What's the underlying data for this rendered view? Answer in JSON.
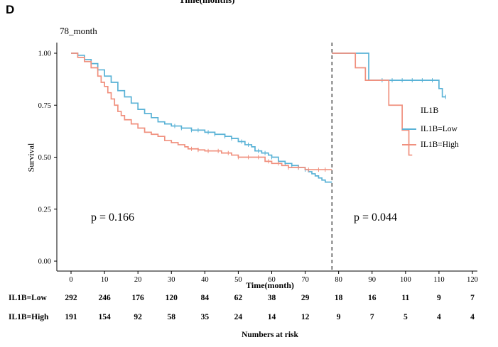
{
  "panel_label": "D",
  "top_cropped_text": "Time(months)",
  "title": "78_month",
  "p_values": {
    "left": "p = 0.166",
    "right": "p = 0.044"
  },
  "legend": {
    "title": "IL1B",
    "entries": [
      {
        "label": "IL1B=Low",
        "color": "#59b2d6"
      },
      {
        "label": "IL1B=High",
        "color": "#f0907e"
      }
    ]
  },
  "axes": {
    "x_label": "Time(month)",
    "y_label": "Survival"
  },
  "risk_table": {
    "caption": "Numbers at risk",
    "rows": [
      {
        "label": "IL1B=Low",
        "values": [
          292,
          246,
          176,
          120,
          84,
          62,
          38,
          29,
          18,
          16,
          11,
          9,
          7
        ]
      },
      {
        "label": "IL1B=High",
        "values": [
          191,
          154,
          92,
          58,
          35,
          24,
          14,
          12,
          9,
          7,
          5,
          4,
          4
        ]
      }
    ]
  },
  "chart_data": {
    "type": "line",
    "subtype": "kaplan-meier",
    "title": "78_month",
    "xlabel": "Time(month)",
    "ylabel": "Survival",
    "xlim": [
      0,
      120
    ],
    "ylim": [
      0,
      1
    ],
    "x_ticks": [
      0,
      10,
      20,
      30,
      40,
      50,
      60,
      70,
      80,
      90,
      100,
      110,
      120
    ],
    "y_ticks": [
      0,
      0.25,
      0.5,
      0.75,
      1
    ],
    "landmark_time": 78,
    "p_left": 0.166,
    "p_right": 0.044,
    "dashed_line_color": "#333333",
    "series": [
      {
        "name": "IL1B=Low",
        "color": "#59b2d6",
        "segments": [
          [
            [
              0,
              1.0
            ],
            [
              2,
              0.99
            ],
            [
              4,
              0.97
            ],
            [
              6,
              0.95
            ],
            [
              8,
              0.92
            ],
            [
              10,
              0.89
            ],
            [
              12,
              0.86
            ],
            [
              14,
              0.82
            ],
            [
              16,
              0.79
            ],
            [
              18,
              0.76
            ],
            [
              20,
              0.73
            ],
            [
              22,
              0.71
            ],
            [
              24,
              0.69
            ],
            [
              26,
              0.67
            ],
            [
              28,
              0.66
            ],
            [
              30,
              0.65
            ],
            [
              33,
              0.64
            ],
            [
              36,
              0.63
            ],
            [
              40,
              0.62
            ],
            [
              43,
              0.61
            ],
            [
              46,
              0.6
            ],
            [
              48,
              0.59
            ],
            [
              50,
              0.575
            ],
            [
              52,
              0.56
            ],
            [
              54,
              0.55
            ],
            [
              55,
              0.53
            ],
            [
              57,
              0.52
            ],
            [
              59,
              0.51
            ],
            [
              60,
              0.5
            ],
            [
              62,
              0.48
            ],
            [
              64,
              0.47
            ],
            [
              66,
              0.46
            ],
            [
              68,
              0.45
            ],
            [
              70,
              0.44
            ],
            [
              71,
              0.43
            ],
            [
              72,
              0.42
            ],
            [
              73,
              0.41
            ],
            [
              74,
              0.4
            ],
            [
              75,
              0.39
            ],
            [
              76,
              0.38
            ],
            [
              78,
              0.38
            ]
          ],
          [
            [
              78,
              1.0
            ],
            [
              89,
              0.87
            ],
            [
              110,
              0.83
            ],
            [
              111,
              0.79
            ],
            [
              112,
              0.79
            ]
          ]
        ],
        "censor_times": [
          [
            31,
            33,
            36,
            38,
            41,
            43,
            46,
            48,
            51,
            53,
            56,
            58,
            60,
            62,
            64,
            66,
            68,
            70
          ],
          [
            93,
            96,
            99,
            102,
            105,
            108,
            112
          ]
        ]
      },
      {
        "name": "IL1B=High",
        "color": "#f0907e",
        "segments": [
          [
            [
              0,
              1.0
            ],
            [
              2,
              0.98
            ],
            [
              4,
              0.96
            ],
            [
              6,
              0.93
            ],
            [
              8,
              0.89
            ],
            [
              9,
              0.86
            ],
            [
              10,
              0.84
            ],
            [
              11,
              0.81
            ],
            [
              12,
              0.78
            ],
            [
              13,
              0.75
            ],
            [
              14,
              0.72
            ],
            [
              15,
              0.7
            ],
            [
              16,
              0.68
            ],
            [
              18,
              0.66
            ],
            [
              20,
              0.64
            ],
            [
              22,
              0.62
            ],
            [
              24,
              0.61
            ],
            [
              26,
              0.6
            ],
            [
              28,
              0.58
            ],
            [
              30,
              0.57
            ],
            [
              32,
              0.56
            ],
            [
              34,
              0.55
            ],
            [
              35,
              0.54
            ],
            [
              38,
              0.535
            ],
            [
              40,
              0.53
            ],
            [
              45,
              0.52
            ],
            [
              48,
              0.51
            ],
            [
              50,
              0.5
            ],
            [
              55,
              0.5
            ],
            [
              58,
              0.48
            ],
            [
              60,
              0.47
            ],
            [
              63,
              0.46
            ],
            [
              65,
              0.45
            ],
            [
              70,
              0.44
            ],
            [
              78,
              0.44
            ]
          ],
          [
            [
              78,
              1.0
            ],
            [
              85,
              0.93
            ],
            [
              88,
              0.87
            ],
            [
              95,
              0.75
            ],
            [
              99,
              0.63
            ],
            [
              101,
              0.51
            ],
            [
              102,
              0.51
            ]
          ]
        ],
        "censor_times": [
          [
            36,
            38,
            41,
            44,
            47,
            50,
            53,
            56,
            59,
            62,
            65,
            68,
            71,
            74,
            76
          ],
          []
        ]
      }
    ]
  }
}
